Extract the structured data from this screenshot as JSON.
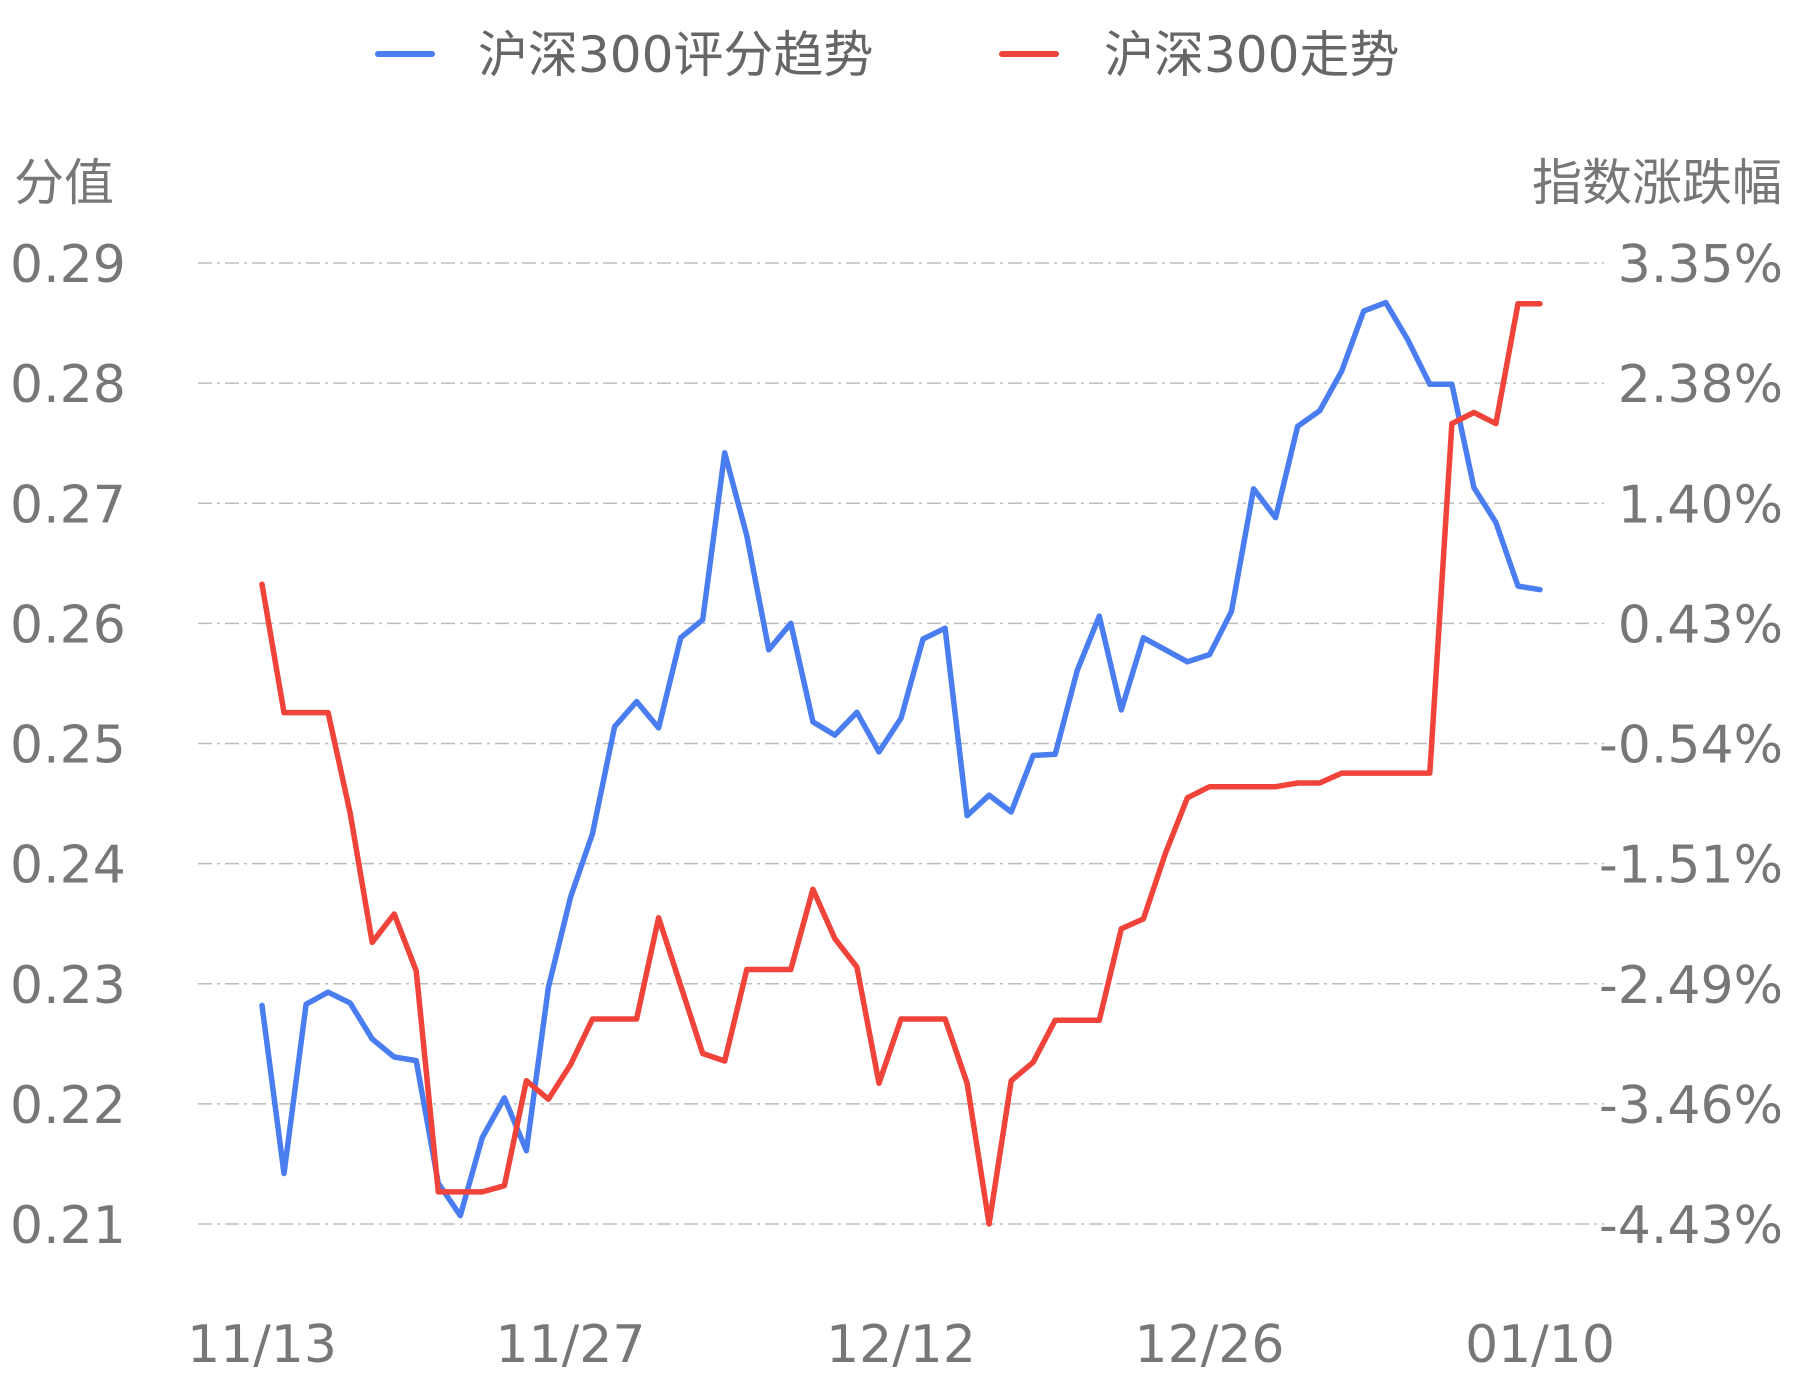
{
  "chart_data": {
    "type": "line",
    "legend": [
      "沪深300评分趋势",
      "沪深300走势"
    ],
    "legend_position": "top-center",
    "y_left_label": "分值",
    "y_right_label": "指数涨跌幅",
    "y_left_ticks": [
      "0.29",
      "0.28",
      "0.27",
      "0.26",
      "0.25",
      "0.24",
      "0.23",
      "0.22",
      "0.21"
    ],
    "y_right_ticks": [
      "3.35%",
      "2.38%",
      "1.40%",
      "0.43%",
      "-0.54%",
      "-1.51%",
      "-2.49%",
      "-3.46%",
      "-4.43%"
    ],
    "y_left_range": [
      0.21,
      0.29
    ],
    "y_right_range": [
      -4.43,
      3.35
    ],
    "x_ticks": [
      "11/13",
      "11/27",
      "12/12",
      "12/26",
      "01/10"
    ],
    "grid": true,
    "series": [
      {
        "name": "沪深300评分趋势",
        "axis": "left",
        "color": "#4A7EF0",
        "values": [
          0.2282,
          0.2142,
          0.2283,
          0.2293,
          0.2284,
          0.2254,
          0.2239,
          0.2236,
          0.2134,
          0.2107,
          0.2172,
          0.2205,
          0.2161,
          0.2297,
          0.2372,
          0.2425,
          0.2514,
          0.2535,
          0.2513,
          0.2588,
          0.2603,
          0.2742,
          0.2673,
          0.2578,
          0.26,
          0.2518,
          0.2507,
          0.2526,
          0.2493,
          0.2521,
          0.2587,
          0.2596,
          0.244,
          0.2457,
          0.2443,
          0.249,
          0.2491,
          0.2561,
          0.2606,
          0.2528,
          0.2588,
          0.2578,
          0.2568,
          0.2574,
          0.261,
          0.2712,
          0.2688,
          0.2764,
          0.2777,
          0.281,
          0.286,
          0.2867,
          0.2836,
          0.2799,
          0.2799,
          0.2713,
          0.2684,
          0.2631,
          0.2628
        ]
      },
      {
        "name": "沪深300走势",
        "axis": "right",
        "color": "#F0433A",
        "values": [
          0.75,
          -0.29,
          -0.29,
          -0.29,
          -1.1,
          -2.15,
          -1.92,
          -2.38,
          -4.17,
          -4.17,
          -4.17,
          -4.12,
          -3.27,
          -3.42,
          -3.14,
          -2.77,
          -2.77,
          -2.77,
          -1.95,
          -2.5,
          -3.05,
          -3.11,
          -2.37,
          -2.37,
          -2.37,
          -1.72,
          -2.12,
          -2.35,
          -3.29,
          -2.77,
          -2.77,
          -2.77,
          -3.29,
          -4.43,
          -3.27,
          -3.12,
          -2.78,
          -2.78,
          -2.78,
          -2.04,
          -1.96,
          -1.43,
          -0.98,
          -0.89,
          -0.89,
          -0.89,
          -0.89,
          -0.86,
          -0.86,
          -0.78,
          -0.78,
          -0.78,
          -0.78,
          -0.78,
          2.05,
          2.14,
          2.05,
          3.02,
          3.02
        ]
      }
    ]
  }
}
